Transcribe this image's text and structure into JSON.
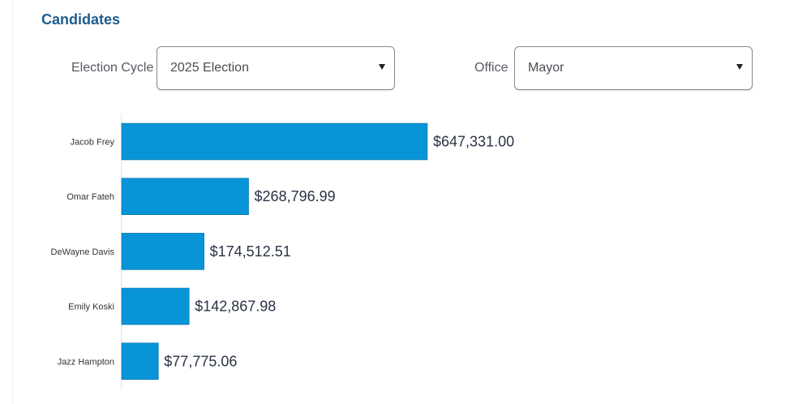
{
  "header": {
    "title": "Candidates"
  },
  "filters": {
    "election_cycle": {
      "label": "Election Cycle",
      "selected": "2025 Election"
    },
    "office": {
      "label": "Office",
      "selected": "Mayor"
    }
  },
  "icons": {
    "dropdown": "caret-down-icon"
  },
  "colors": {
    "title": "#1f5b8a",
    "bar": "#0795d8"
  },
  "chart_data": {
    "type": "bar",
    "orientation": "horizontal",
    "categories": [
      "Jacob Frey",
      "Omar Fateh",
      "DeWayne Davis",
      "Emily Koski",
      "Jazz Hampton"
    ],
    "values": [
      647331.0,
      268796.99,
      174512.51,
      142867.98,
      77775.06
    ],
    "value_labels": [
      "$647,331.00",
      "$268,796.99",
      "$174,512.51",
      "$142,867.98",
      "$77,775.06"
    ],
    "title": "",
    "xlabel": "",
    "ylabel": "",
    "xlim": [
      0,
      647331
    ],
    "grid": false,
    "legend": "none"
  }
}
